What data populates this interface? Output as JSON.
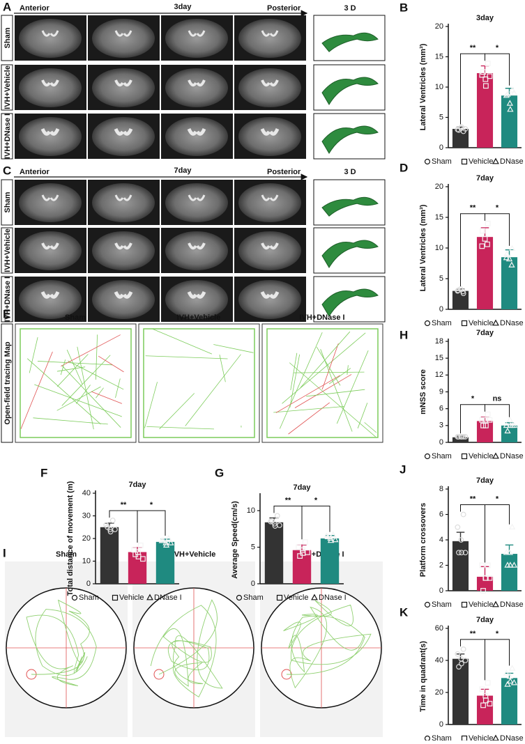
{
  "chart_data": [
    {
      "type": "bar",
      "letter": "B",
      "title": "3day",
      "ylabel": "Lateral Ventricles (mm³)",
      "categories": [
        "Sham",
        "Vehicle",
        "DNase I"
      ],
      "colors": [
        "#333333",
        "#c8245a",
        "#1f8a80"
      ],
      "values": [
        3.1,
        12.3,
        8.6
      ],
      "errors": [
        0.3,
        1.2,
        1.2
      ],
      "points": [
        [
          2.7,
          3.0,
          3.2,
          3.4,
          2.9,
          3.1
        ],
        [
          13.9,
          12.0,
          11.3,
          10.2,
          12.5,
          11.8
        ],
        [
          9.5,
          8.6,
          7.3,
          6.3,
          8.8,
          9.0
        ]
      ],
      "ylim": [
        0,
        20
      ],
      "yticks": [
        0,
        5,
        10,
        15,
        20
      ],
      "significance": [
        "**",
        "*"
      ]
    },
    {
      "type": "bar",
      "letter": "D",
      "title": "7day",
      "ylabel": "Lateral Ventricles (mm³)",
      "categories": [
        "Sham",
        "Vehicle",
        "DNase I"
      ],
      "colors": [
        "#333333",
        "#c8245a",
        "#1f8a80"
      ],
      "values": [
        3.0,
        11.8,
        8.5
      ],
      "errors": [
        0.3,
        1.5,
        1.2
      ],
      "points": [
        [
          2.6,
          3.1,
          3.3,
          2.9,
          3.0
        ],
        [
          14.0,
          12.8,
          11.5,
          10.6,
          10.3
        ],
        [
          9.9,
          9.0,
          8.2,
          7.2,
          8.4
        ]
      ],
      "ylim": [
        0,
        20
      ],
      "yticks": [
        0,
        5,
        10,
        15,
        20
      ],
      "significance": [
        "**",
        "*"
      ]
    },
    {
      "type": "bar",
      "letter": "H",
      "title": "7day",
      "ylabel": "mNSS score",
      "categories": [
        "Sham",
        "Vehicle",
        "DNase I"
      ],
      "colors": [
        "#333333",
        "#c8245a",
        "#1f8a80"
      ],
      "values": [
        0.9,
        3.8,
        3.0
      ],
      "errors": [
        0.2,
        0.7,
        0.5
      ],
      "points": [
        [
          1,
          1,
          1,
          1,
          1,
          1
        ],
        [
          5,
          4,
          4,
          3,
          3,
          4
        ],
        [
          3,
          3,
          4,
          3,
          2,
          3
        ]
      ],
      "ylim": [
        0,
        18
      ],
      "yticks": [
        0,
        3,
        6,
        9,
        12,
        15,
        18
      ],
      "significance": [
        "*",
        "ns"
      ]
    },
    {
      "type": "bar",
      "letter": "F",
      "title": "7day",
      "ylabel": "Total distance of movement (m)",
      "categories": [
        "Sham",
        "Vehicle",
        "DNase I"
      ],
      "colors": [
        "#333333",
        "#c8245a",
        "#1f8a80"
      ],
      "values": [
        25,
        14,
        18.5
      ],
      "errors": [
        1.8,
        2,
        1.2
      ],
      "points": [
        [
          28,
          26,
          24,
          23,
          25,
          24
        ],
        [
          17,
          15,
          14,
          12,
          13,
          11
        ],
        [
          20,
          19,
          18,
          17,
          19,
          18
        ]
      ],
      "ylim": [
        0,
        40
      ],
      "yticks": [
        0,
        10,
        20,
        30,
        40
      ],
      "significance": [
        "**",
        "*"
      ]
    },
    {
      "type": "bar",
      "letter": "G",
      "title": "7day",
      "ylabel": "Average Speed(cm/s)",
      "categories": [
        "Sham",
        "Vehicle",
        "DNase I"
      ],
      "colors": [
        "#333333",
        "#c8245a",
        "#1f8a80"
      ],
      "values": [
        8.4,
        4.6,
        6.2
      ],
      "errors": [
        0.6,
        0.7,
        0.4
      ],
      "points": [
        [
          9.3,
          8.5,
          8.2,
          7.9,
          8.6,
          8.0
        ],
        [
          5.7,
          5.0,
          4.6,
          4.2,
          3.8,
          4.3
        ],
        [
          6.7,
          6.5,
          6.2,
          5.9,
          6.4,
          6.0
        ]
      ],
      "ylim": [
        0,
        12
      ],
      "yticks": [
        0,
        5,
        10
      ],
      "significance": [
        "**",
        "*"
      ]
    },
    {
      "type": "bar",
      "letter": "J",
      "title": "7day",
      "ylabel": "Platform crossovers",
      "categories": [
        "Sham",
        "Vehicle",
        "DNase I"
      ],
      "colors": [
        "#333333",
        "#c8245a",
        "#1f8a80"
      ],
      "values": [
        3.9,
        1.1,
        2.9
      ],
      "errors": [
        0.7,
        0.8,
        0.7
      ],
      "points": [
        [
          6,
          5,
          4,
          3,
          3,
          3
        ],
        [
          2,
          2,
          1,
          1,
          0,
          1
        ],
        [
          5,
          3,
          3,
          2,
          2,
          2
        ]
      ],
      "ylim": [
        0,
        8
      ],
      "yticks": [
        0,
        2,
        4,
        6,
        8
      ],
      "significance": [
        "**",
        "*"
      ]
    },
    {
      "type": "bar",
      "letter": "K",
      "title": "7day",
      "ylabel": "Time in quadrant(s)",
      "categories": [
        "Sham",
        "Vehicle",
        "DNase I"
      ],
      "colors": [
        "#333333",
        "#c8245a",
        "#1f8a80"
      ],
      "values": [
        41,
        18,
        29
      ],
      "errors": [
        3,
        4,
        3
      ],
      "points": [
        [
          47,
          44,
          41,
          38,
          36,
          40
        ],
        [
          26,
          22,
          18,
          15,
          12,
          13
        ],
        [
          35,
          32,
          30,
          27,
          25,
          26
        ]
      ],
      "ylim": [
        0,
        60
      ],
      "yticks": [
        0,
        20,
        40,
        60
      ],
      "significance": [
        "**",
        "*"
      ]
    }
  ],
  "mri_panels": [
    {
      "letter": "A",
      "anterior": "Anterior",
      "day": "3day",
      "posterior": "Posterior",
      "three_d": "3 D",
      "rows": [
        "Sham",
        "IVH+Vehicle",
        "IVH+DNase I"
      ]
    },
    {
      "letter": "C",
      "anterior": "Anterior",
      "day": "7day",
      "posterior": "Posterior",
      "three_d": "3 D",
      "rows": [
        "Sham",
        "IVH+Vehicle",
        "IVH+DNase I"
      ]
    }
  ],
  "open_field": {
    "letter": "E",
    "side_label": "Open-field tracing Map",
    "columns": [
      "Sham",
      "IVH+Vehicle",
      "IVH+DNase I"
    ]
  },
  "water_maze": {
    "letter": "I",
    "columns": [
      "Sham",
      "IVH+Vehicle",
      "IVH+DNase I"
    ]
  }
}
